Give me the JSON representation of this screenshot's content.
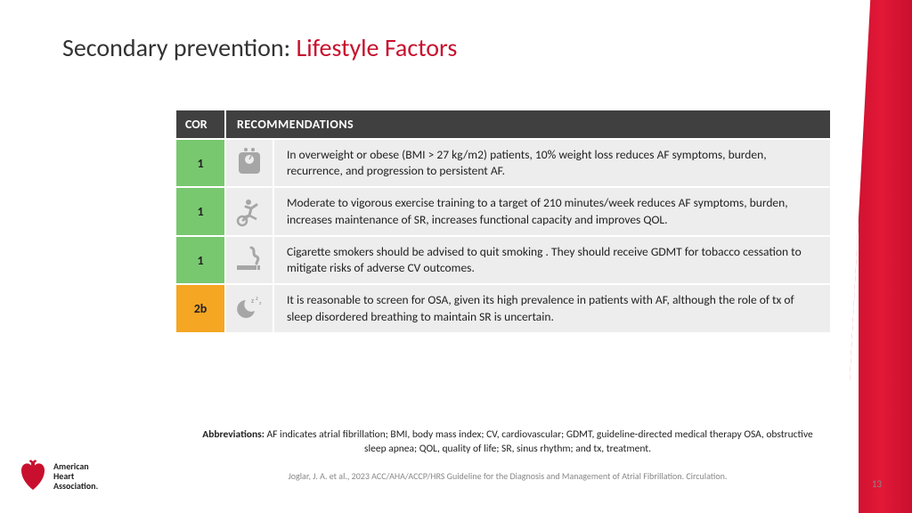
{
  "title": {
    "prefix": "Secondary prevention: ",
    "highlight": "Lifestyle Factors"
  },
  "colors": {
    "cor1_bg": "#78c86f",
    "cor2b_bg": "#f5a623",
    "header_bg": "#404040",
    "row_bg": "#ededed",
    "icon_fill": "#a6a6a6",
    "brand_red": "#c8102e",
    "title_dark": "#333333"
  },
  "table": {
    "headers": {
      "cor": "COR",
      "rec": "RECOMMENDATIONS"
    },
    "rows": [
      {
        "cor": "1",
        "cor_color_key": "cor1_bg",
        "icon": "scale",
        "text": "In overweight or obese (BMI > 27 kg/m2) patients, 10% weight loss reduces AF symptoms, burden, recurrence, and progression to persistent AF."
      },
      {
        "cor": "1",
        "cor_color_key": "cor1_bg",
        "icon": "bike",
        "text": "Moderate to vigorous exercise training to a target of 210 minutes/week reduces AF symptoms, burden, increases maintenance of SR, increases functional capacity and improves QOL."
      },
      {
        "cor": "1",
        "cor_color_key": "cor1_bg",
        "icon": "smoke",
        "text": "Cigarette smokers should be advised to quit smoking . They should receive GDMT for tobacco cessation to mitigate risks of adverse CV outcomes."
      },
      {
        "cor": "2b",
        "cor_color_key": "cor2b_bg",
        "icon": "sleep",
        "text": "It is reasonable to screen for OSA, given its high prevalence in patients with AF, although the role of tx of sleep disordered breathing to maintain SR is uncertain."
      }
    ]
  },
  "abbreviations": {
    "label": "Abbreviations:",
    "text": " AF indicates atrial fibrillation; BMI, body mass index; CV, cardiovascular; GDMT, guideline-directed medical therapy OSA, obstructive sleep apnea; QOL, quality of life; SR, sinus rhythm; and tx, treatment."
  },
  "citation": "Joglar, J. A. et al., 2023 ACC/AHA/ACCP/HRS Guideline for the Diagnosis and Management of Atrial Fibrillation. Circulation.",
  "page_number": "13",
  "logo": {
    "line1": "American",
    "line2": "Heart",
    "line3": "Association."
  }
}
